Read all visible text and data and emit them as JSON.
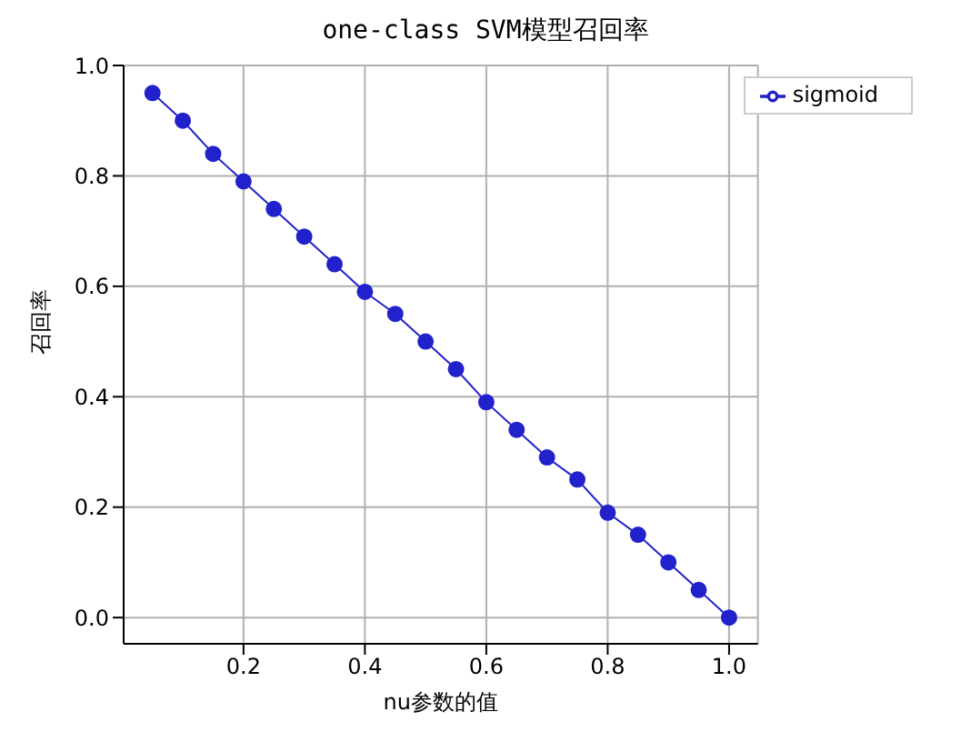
{
  "chart_data": {
    "type": "line",
    "title": "one-class SVM模型召回率",
    "xlabel": "nu参数的值",
    "ylabel": "召回率",
    "x": [
      0.05,
      0.1,
      0.15,
      0.2,
      0.25,
      0.3,
      0.35,
      0.4,
      0.45,
      0.5,
      0.55,
      0.6,
      0.65,
      0.7,
      0.75,
      0.8,
      0.85,
      0.9,
      0.95,
      1.0
    ],
    "series": [
      {
        "name": "sigmoid",
        "color": "#2222cc",
        "values": [
          0.95,
          0.9,
          0.84,
          0.79,
          0.74,
          0.69,
          0.64,
          0.59,
          0.55,
          0.5,
          0.45,
          0.39,
          0.34,
          0.29,
          0.25,
          0.19,
          0.15,
          0.1,
          0.05,
          0.0
        ]
      }
    ],
    "xlim": [
      0.0025,
      1.0475
    ],
    "xticks": [
      0.2,
      0.4,
      0.6,
      0.8,
      {
        "value": 1,
        "label": "1.0"
      }
    ],
    "ylim": [
      -0.0475,
      1.0
    ],
    "yticks": [
      {
        "value": 0,
        "label": "0.0"
      },
      0.2,
      0.4,
      0.6,
      0.8,
      {
        "value": 1,
        "label": "1.0"
      }
    ],
    "grid": true,
    "legend": "top right",
    "marker": "circle",
    "line_style": "solid"
  }
}
